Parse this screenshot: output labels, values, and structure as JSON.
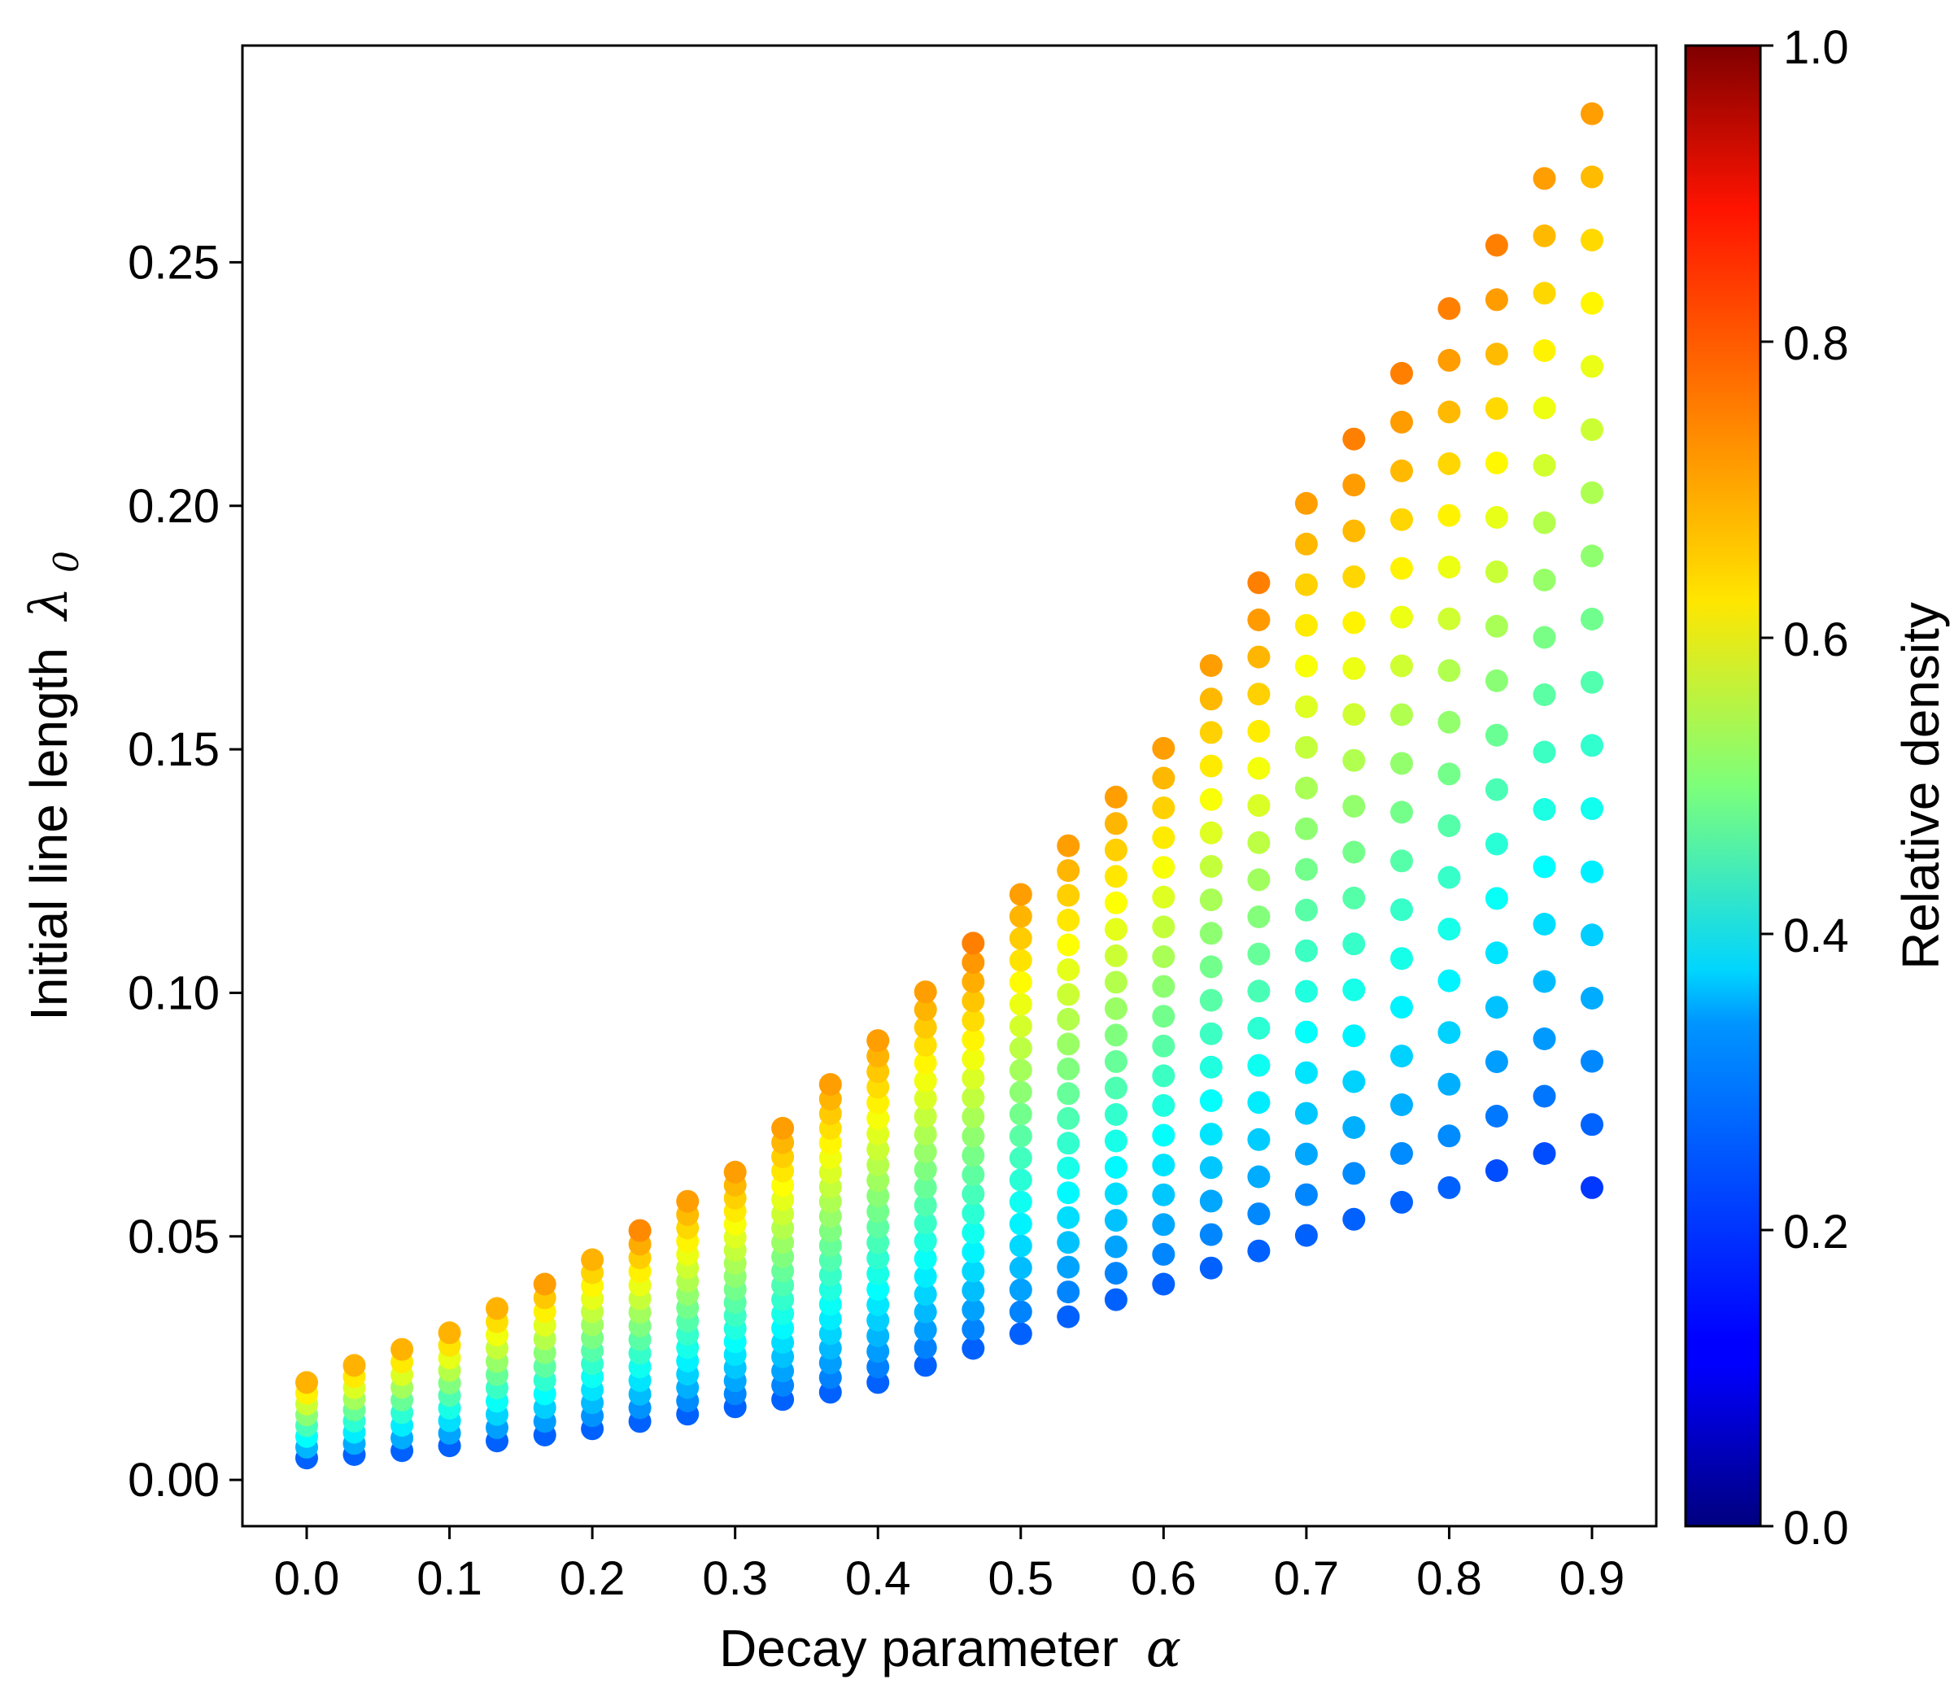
{
  "chart_data": {
    "type": "scatter",
    "title": "",
    "xlabel": "Decay parameter",
    "xlabel_symbol": "α",
    "ylabel": "Initial line length",
    "ylabel_symbol": "λ",
    "ylabel_subscript": "0",
    "colorbar_label": "Relative density",
    "colormap": "jet",
    "xlim": [
      -0.045,
      0.945
    ],
    "ylim": [
      -0.0095,
      0.2945
    ],
    "x_ticks": [
      0.0,
      0.1,
      0.2,
      0.3,
      0.4,
      0.5,
      0.6,
      0.7,
      0.8,
      0.9
    ],
    "x_tick_labels": [
      "0.0",
      "0.1",
      "0.2",
      "0.3",
      "0.4",
      "0.5",
      "0.6",
      "0.7",
      "0.8",
      "0.9"
    ],
    "y_ticks": [
      0.0,
      0.05,
      0.1,
      0.15,
      0.2,
      0.25
    ],
    "y_tick_labels": [
      "0.00",
      "0.05",
      "0.10",
      "0.15",
      "0.20",
      "0.25"
    ],
    "colorbar_ticks": [
      0.0,
      0.2,
      0.4,
      0.6,
      0.8,
      1.0
    ],
    "colorbar_tick_labels": [
      "0.0",
      "0.2",
      "0.4",
      "0.6",
      "0.8",
      "1.0"
    ],
    "grid": false,
    "legend": "none",
    "point_color": "#1f77b4",
    "x_values": [
      0.0,
      0.0333,
      0.0667,
      0.1,
      0.1333,
      0.1667,
      0.2,
      0.2333,
      0.2667,
      0.3,
      0.3333,
      0.3667,
      0.4,
      0.4333,
      0.4667,
      0.5,
      0.5333,
      0.5667,
      0.6,
      0.6333,
      0.6667,
      0.7,
      0.7333,
      0.7667,
      0.8,
      0.8333,
      0.8667,
      0.9
    ],
    "y_min": [
      0.0045,
      0.0052,
      0.006,
      0.007,
      0.008,
      0.0092,
      0.0105,
      0.012,
      0.0135,
      0.015,
      0.0165,
      0.018,
      0.02,
      0.0235,
      0.027,
      0.03,
      0.0335,
      0.037,
      0.0402,
      0.0435,
      0.047,
      0.0502,
      0.0535,
      0.057,
      0.06,
      0.0635,
      0.067,
      0.06
    ],
    "y_max": [
      0.02,
      0.0235,
      0.0268,
      0.0302,
      0.0352,
      0.0402,
      0.0452,
      0.0512,
      0.0572,
      0.0632,
      0.0722,
      0.0812,
      0.0902,
      0.1002,
      0.1102,
      0.1202,
      0.1302,
      0.1402,
      0.1502,
      0.1672,
      0.1842,
      0.2005,
      0.2137,
      0.2272,
      0.2405,
      0.2535,
      0.2672,
      0.2805
    ],
    "n_points": [
      8,
      9,
      9,
      10,
      11,
      12,
      14,
      15,
      17,
      19,
      20,
      22,
      23,
      22,
      22,
      21,
      20,
      20,
      19,
      19,
      19,
      19,
      18,
      18,
      18,
      18,
      18,
      18
    ],
    "color_min": [
      0.22,
      0.22,
      0.22,
      0.22,
      0.22,
      0.22,
      0.22,
      0.22,
      0.22,
      0.22,
      0.22,
      0.22,
      0.22,
      0.22,
      0.22,
      0.22,
      0.22,
      0.22,
      0.22,
      0.22,
      0.22,
      0.22,
      0.22,
      0.22,
      0.22,
      0.2,
      0.2,
      0.18
    ],
    "color_max": [
      0.7,
      0.7,
      0.7,
      0.7,
      0.7,
      0.72,
      0.7,
      0.74,
      0.72,
      0.72,
      0.72,
      0.72,
      0.72,
      0.72,
      0.75,
      0.72,
      0.72,
      0.72,
      0.72,
      0.72,
      0.75,
      0.72,
      0.75,
      0.75,
      0.75,
      0.75,
      0.72,
      0.72
    ]
  }
}
